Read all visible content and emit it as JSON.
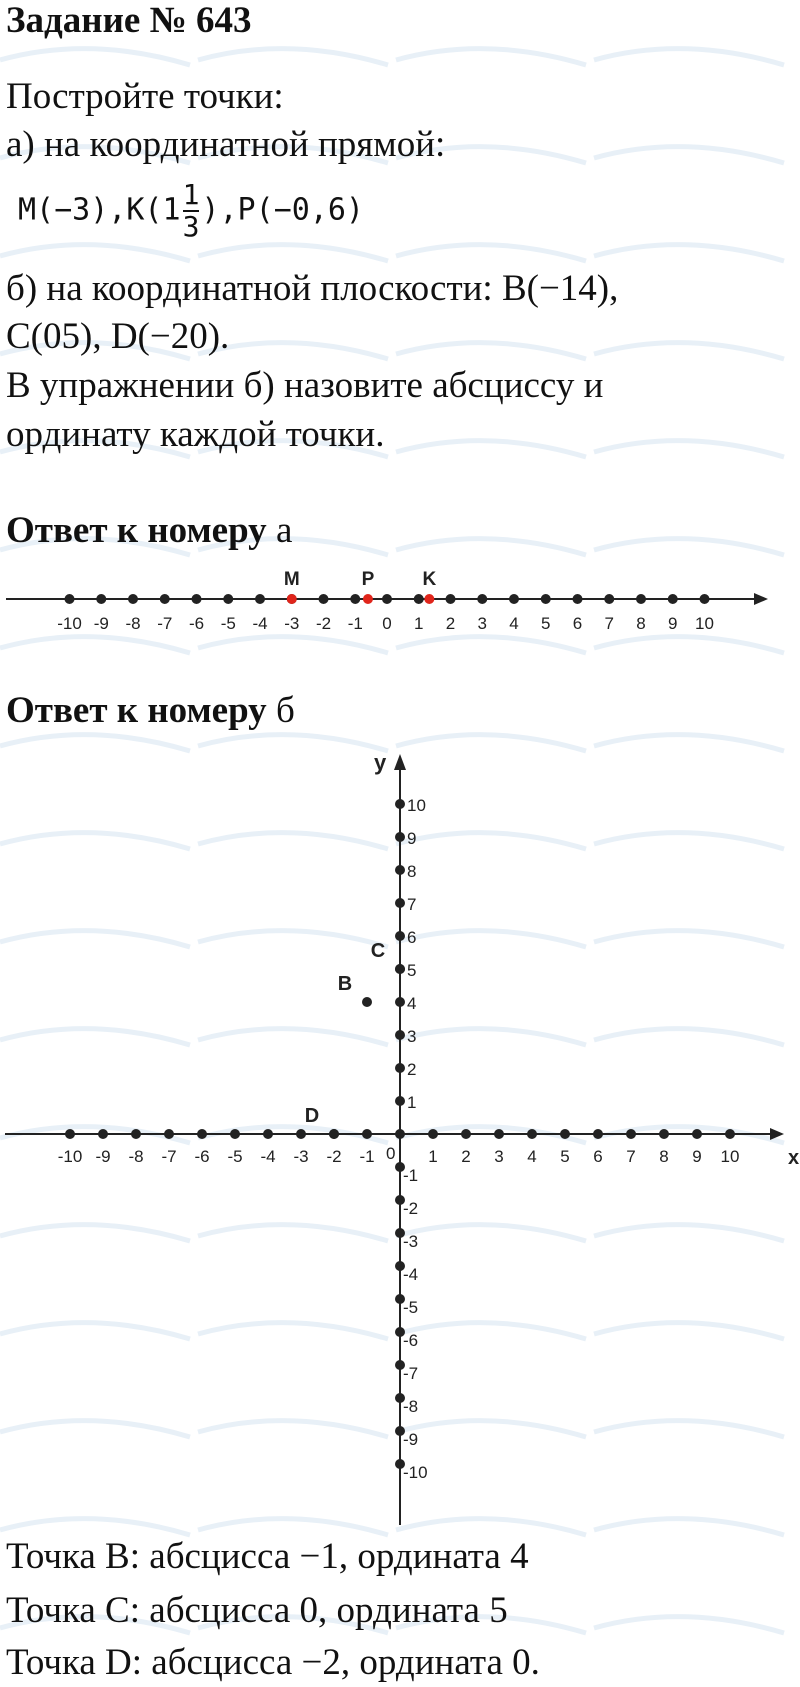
{
  "title": "Задание № 643",
  "task": {
    "line1": "Постройте точки:",
    "line2": "а) на координатной прямой:",
    "formula": {
      "m": "M(−3),",
      "k_pre": "K(1",
      "k_num": "1",
      "k_den": "3",
      "k_post": "),",
      "p": "P(−0,6)"
    },
    "line3": "б) на координатной плоскости: B(−14),",
    "line4": "C(05), D(−20).",
    "line5": "В упражнении б) назовите абсциссу и",
    "line6": "ординату каждой точки."
  },
  "answer_a": {
    "heading_bold": "Ответ к номеру",
    "heading_letter": "а"
  },
  "answer_b": {
    "heading_bold": "Ответ к номеру",
    "heading_letter": "б"
  },
  "number_line": {
    "range": [
      -10,
      10
    ],
    "points": [
      {
        "label": "M",
        "value": -3
      },
      {
        "label": "P",
        "value": -0.6
      },
      {
        "label": "K",
        "value": 1.3333
      }
    ],
    "point_color": "#e0251b"
  },
  "plane": {
    "range": [
      -10,
      10
    ],
    "x_label": "x",
    "y_label": "y",
    "origin_label": "0",
    "points": [
      {
        "label": "B",
        "x": -1,
        "y": 4
      },
      {
        "label": "C",
        "x": 0,
        "y": 5
      },
      {
        "label": "D",
        "x": -2,
        "y": 0
      }
    ]
  },
  "results": [
    "Точка B: абсцисса −1, ордината 4",
    "Точка C: абсцисса 0, ордината 5",
    "Точка D: абсцисса −2, ордината 0."
  ],
  "watermark": {
    "main": "Илюха",
    "suffix": "-решает.РФ",
    "main_color": "#dbe8f3",
    "suffix_color": "#f4c6c6"
  }
}
